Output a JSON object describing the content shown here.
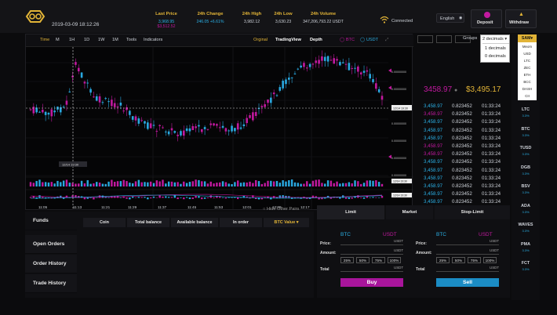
{
  "header": {
    "datetime": "2019-03-09 18:12:26",
    "stats": [
      {
        "label": "Last Price",
        "value": "3,968.95",
        "value2": "$3,512.52"
      },
      {
        "label": "24h Change",
        "value": "246.05",
        "value2": "+6.61%"
      },
      {
        "label": "24h High",
        "value": "3,982.12",
        "value2": ""
      },
      {
        "label": "24h Low",
        "value": "3,630.23",
        "value2": ""
      },
      {
        "label": "24h Volume",
        "value": "347,206,793.22",
        "value2": "USDT"
      }
    ],
    "connected": "Connected",
    "language": "English",
    "deposit": "Deposit",
    "withdraw": "Withdraw",
    "accent": "#e2b437"
  },
  "toolbar": {
    "intervals": [
      "Time",
      "M",
      "1H",
      "1D",
      "1W",
      "1M"
    ],
    "tools": "Tools",
    "indicators": "Indicators",
    "views": [
      "Orginal",
      "TradingView",
      "Depth"
    ],
    "btc": "BTC",
    "usdt": "USDT"
  },
  "chart": {
    "crosshair_time": "12/14 19:30",
    "crosshair_price": "12/14 19:30",
    "time_labels": [
      "11:05",
      "11:13",
      "11:21",
      "11:29",
      "11:37",
      "11:45",
      "11:53",
      "12:01",
      "12:09",
      "12:17",
      "12:25",
      "12:29"
    ],
    "price_labels": [
      "0.00000000",
      "0.00000000",
      "0.00000000",
      "0.00000000",
      "0.00000000",
      "0.00000000",
      "0.00000000"
    ],
    "volume_label": "12/14 19:30",
    "macd_label": "12/14 19:30",
    "hide_other_pairs": "Hide Other Pairs",
    "candle_up_color": "#29a8e0",
    "candle_down_color": "#c2199f"
  },
  "orderbook": {
    "groups_label": "Groups",
    "groups_selected": "2 decimals",
    "groups_options": [
      "1 decimals",
      "0 decimals"
    ],
    "sell_rows": [
      [
        "3,458.97",
        "0.823452",
        "01:33:24"
      ],
      [
        "3,458.97",
        "0.823452",
        "01:33:24"
      ],
      [
        "3,458.97",
        "0.823452",
        "01:33:24"
      ],
      [
        "3,458.97",
        "0.823452",
        "01:33:24"
      ],
      [
        "3,458.97",
        "0.823452",
        "01:33:24"
      ],
      [
        "3,458.97",
        "0.823452",
        "01:33:24"
      ]
    ],
    "mid_price": "3458.97",
    "mid_usd": "$3,495.17",
    "buy_rows": [
      [
        "3,458.97",
        "0.823452",
        "01:33:24"
      ],
      [
        "3,458.97",
        "0.823452",
        "01:33:24"
      ],
      [
        "3,458.97",
        "0.823452",
        "01:33:24"
      ],
      [
        "3,458.97",
        "0.823452",
        "01:33:24"
      ],
      [
        "3,458.97",
        "0.823452",
        "01:33:24"
      ],
      [
        "3,458.97",
        "0.823452",
        "01:33:24"
      ],
      [
        "3,458.97",
        "0.823452",
        "01:33:24"
      ],
      [
        "3,458.97",
        "0.823452",
        "01:33:24"
      ],
      [
        "3,458.97",
        "0.823452",
        "01:33:24"
      ],
      [
        "3,458.97",
        "0.823452",
        "01:33:24"
      ],
      [
        "3,458.97",
        "0.823452",
        "01:33:24"
      ],
      [
        "3,458.97",
        "0.823452",
        "01:33:24"
      ],
      [
        "3,458.97",
        "0.823452",
        "01:33:24"
      ]
    ],
    "buy_colors": [
      "#2bb0e6",
      "#c2199f",
      "#2bb0e6",
      "#2bb0e6",
      "#2bb0e6",
      "#c2199f",
      "#c2199f",
      "#2bb0e6",
      "#2bb0e6",
      "#2bb0e6",
      "#2bb0e6",
      "#2bb0e6",
      "#2bb0e6"
    ]
  },
  "coins": {
    "selected": "SAM",
    "dropdown": [
      "Meom",
      "USD",
      "LTC",
      "ZEC",
      "ETH",
      "BCC",
      "DASH",
      "CII"
    ],
    "list": [
      {
        "name": "LTC",
        "change": "3.3%"
      },
      {
        "name": "BTC",
        "change": "3.3%"
      },
      {
        "name": "TUSD",
        "change": "3.3%"
      },
      {
        "name": "DGB",
        "change": "3.3%"
      },
      {
        "name": "BSV",
        "change": "3.3%"
      },
      {
        "name": "ADA",
        "change": "3.3%"
      },
      {
        "name": "WAVES",
        "change": "3.3%"
      },
      {
        "name": "PMA",
        "change": "3.3%"
      },
      {
        "name": "FCT",
        "change": "3.3%"
      }
    ]
  },
  "funds": {
    "tabs": [
      "Funds",
      "Open Orders",
      "Order History",
      "Trade History"
    ],
    "columns": [
      "Coin",
      "Total balance",
      "Available balance",
      "In order",
      "BTC Value"
    ]
  },
  "trade": {
    "tabs": [
      "Limit",
      "Market",
      "Stop-Limit"
    ],
    "buy": {
      "base": "BTC",
      "quote": "USDT",
      "price_label": "Price:",
      "amount_label": "Amount:",
      "total_label": "Total",
      "unit": "USDT",
      "button": "Buy"
    },
    "sell": {
      "base": "BTC",
      "quote": "USDT",
      "price_label": "Price:",
      "amount_label": "Amount:",
      "total_label": "Total",
      "unit": "USDT",
      "button": "Sell"
    },
    "percents": [
      "25%",
      "50%",
      "75%",
      "100%"
    ]
  }
}
